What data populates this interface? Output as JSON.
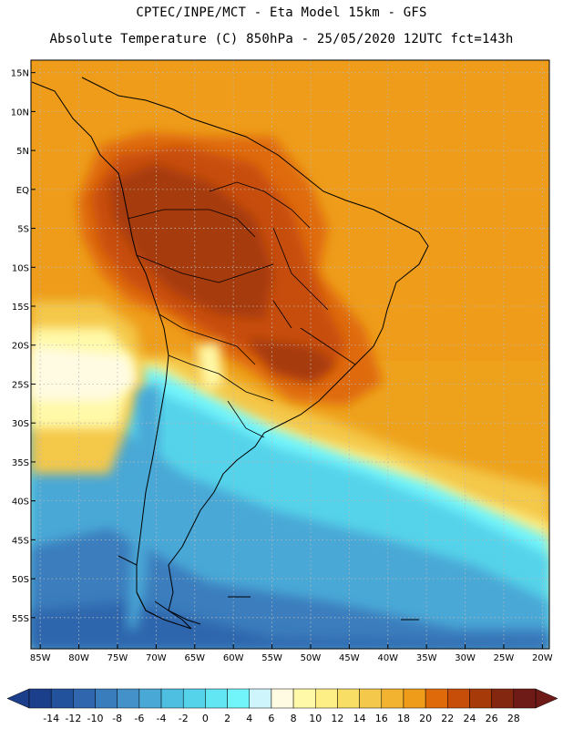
{
  "header": {
    "line1": "CPTEC/INPE/MCT -  Eta Model 15km - GFS",
    "line2": "Absolute Temperature (C) 850hPa - 25/05/2020 12UTC fct=143h"
  },
  "axes": {
    "lon_labels": [
      "85W",
      "80W",
      "75W",
      "70W",
      "65W",
      "60W",
      "55W",
      "50W",
      "45W",
      "40W",
      "35W",
      "30W",
      "25W",
      "20W"
    ],
    "lon_values": [
      -85,
      -80,
      -75,
      -70,
      -65,
      -60,
      -55,
      -50,
      -45,
      -40,
      -35,
      -30,
      -25,
      -20
    ],
    "lat_labels": [
      "15N",
      "10N",
      "5N",
      "EQ",
      "5S",
      "10S",
      "15S",
      "20S",
      "25S",
      "30S",
      "35S",
      "40S",
      "45S",
      "50S",
      "55S"
    ],
    "lat_values": [
      15,
      10,
      5,
      0,
      -5,
      -10,
      -15,
      -20,
      -25,
      -30,
      -35,
      -40,
      -45,
      -50,
      -55
    ]
  },
  "colorbar": {
    "labels": [
      "-14",
      "-12",
      "-10",
      "-8",
      "-6",
      "-4",
      "-2",
      "0",
      "2",
      "4",
      "6",
      "8",
      "10",
      "12",
      "14",
      "16",
      "18",
      "20",
      "22",
      "24",
      "26",
      "28"
    ],
    "colors": [
      "#1c3f8c",
      "#23529c",
      "#2f66ad",
      "#3a7dbd",
      "#4491c9",
      "#4aa8d6",
      "#4ebfe0",
      "#55d3ea",
      "#62e6f4",
      "#72f4fb",
      "#cdf5fb",
      "#fffbe3",
      "#fff9a8",
      "#fdef86",
      "#f9de66",
      "#f4c84a",
      "#f1b330",
      "#ee9c1a",
      "#df6a0a",
      "#c74e08",
      "#a63a09",
      "#842710",
      "#6e1b17"
    ],
    "low_color": "#1c3f8c",
    "high_color": "#6e1b17"
  }
}
